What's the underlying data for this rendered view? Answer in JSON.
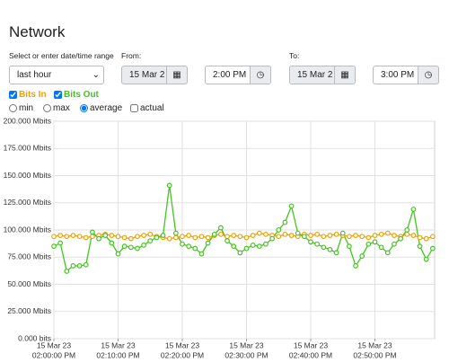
{
  "header": {
    "title": "Network"
  },
  "range": {
    "label": "Select or enter date/time range",
    "preset": "last hour",
    "from_label": "From:",
    "from_date": "15 Mar 2",
    "from_time": "2:00 PM",
    "to_label": "To:",
    "to_date": "15 Mar 2",
    "to_time": "3:00 PM"
  },
  "options": {
    "series": [
      {
        "label": "Bits In",
        "checked": true
      },
      {
        "label": "Bits Out",
        "checked": true
      }
    ],
    "modes": [
      {
        "label": "min",
        "selected": false
      },
      {
        "label": "max",
        "selected": false
      },
      {
        "label": "average",
        "selected": true
      }
    ],
    "actual": {
      "label": "actual",
      "checked": false
    }
  },
  "chart_data": {
    "type": "line",
    "x": [
      "02:00:00 PM",
      "02:01:00 PM",
      "02:02:00 PM",
      "02:03:00 PM",
      "02:04:00 PM",
      "02:05:00 PM",
      "02:06:00 PM",
      "02:07:00 PM",
      "02:08:00 PM",
      "02:09:00 PM",
      "02:10:00 PM",
      "02:11:00 PM",
      "02:12:00 PM",
      "02:13:00 PM",
      "02:14:00 PM",
      "02:15:00 PM",
      "02:16:00 PM",
      "02:17:00 PM",
      "02:18:00 PM",
      "02:19:00 PM",
      "02:20:00 PM",
      "02:21:00 PM",
      "02:22:00 PM",
      "02:23:00 PM",
      "02:24:00 PM",
      "02:25:00 PM",
      "02:26:00 PM",
      "02:27:00 PM",
      "02:28:00 PM",
      "02:29:00 PM",
      "02:30:00 PM",
      "02:31:00 PM",
      "02:32:00 PM",
      "02:33:00 PM",
      "02:34:00 PM",
      "02:35:00 PM",
      "02:36:00 PM",
      "02:37:00 PM",
      "02:38:00 PM",
      "02:39:00 PM",
      "02:40:00 PM",
      "02:41:00 PM",
      "02:42:00 PM",
      "02:43:00 PM",
      "02:44:00 PM",
      "02:45:00 PM",
      "02:46:00 PM",
      "02:47:00 PM",
      "02:48:00 PM",
      "02:49:00 PM",
      "02:50:00 PM",
      "02:51:00 PM",
      "02:52:00 PM",
      "02:53:00 PM",
      "02:54:00 PM",
      "02:55:00 PM",
      "02:56:00 PM",
      "02:57:00 PM",
      "02:58:00 PM",
      "02:59:00 PM"
    ],
    "series": [
      {
        "name": "Bits In",
        "color": "#f0a000",
        "values": [
          94,
          95,
          94,
          95,
          94,
          93,
          94,
          95,
          96,
          95,
          94,
          93,
          92,
          94,
          95,
          96,
          94,
          93,
          92,
          93,
          94,
          95,
          93,
          94,
          93,
          95,
          96,
          94,
          95,
          94,
          93,
          95,
          97,
          96,
          95,
          94,
          96,
          95,
          94,
          96,
          95,
          96,
          94,
          95,
          96,
          95,
          94,
          95,
          94,
          93,
          95,
          96,
          97,
          95,
          94,
          96,
          95,
          93,
          92,
          94
        ]
      },
      {
        "name": "Bits Out",
        "color": "#44c420",
        "values": [
          85,
          88,
          62,
          67,
          67,
          68,
          98,
          92,
          95,
          88,
          78,
          85,
          84,
          83,
          86,
          90,
          93,
          95,
          141,
          97,
          87,
          85,
          83,
          78,
          88,
          96,
          102,
          90,
          85,
          79,
          83,
          86,
          85,
          87,
          92,
          100,
          107,
          122,
          97,
          94,
          89,
          87,
          84,
          82,
          79,
          97,
          85,
          67,
          76,
          87,
          89,
          84,
          79,
          87,
          92,
          100,
          119,
          85,
          73,
          83
        ]
      }
    ],
    "ylim": [
      0,
      200
    ],
    "yticks": [
      {
        "value": 0,
        "label": "0.000 bits"
      },
      {
        "value": 25,
        "label": "25.000 Mbits"
      },
      {
        "value": 50,
        "label": "50.000 Mbits"
      },
      {
        "value": 75,
        "label": "75.000 Mbits"
      },
      {
        "value": 100,
        "label": "100.000 Mbits"
      },
      {
        "value": 125,
        "label": "125.000 Mbits"
      },
      {
        "value": 150,
        "label": "150.000 Mbits"
      },
      {
        "value": 175,
        "label": "175.000 Mbits"
      },
      {
        "value": 200,
        "label": "200.000 Mbits"
      }
    ],
    "xticks": [
      {
        "value": "02:00:00 PM",
        "date": "15 Mar 23"
      },
      {
        "value": "02:10:00 PM",
        "date": "15 Mar 23"
      },
      {
        "value": "02:20:00 PM",
        "date": "15 Mar 23"
      },
      {
        "value": "02:30:00 PM",
        "date": "15 Mar 23"
      },
      {
        "value": "02:40:00 PM",
        "date": "15 Mar 23"
      },
      {
        "value": "02:50:00 PM",
        "date": "15 Mar 23"
      }
    ],
    "grid": true
  }
}
